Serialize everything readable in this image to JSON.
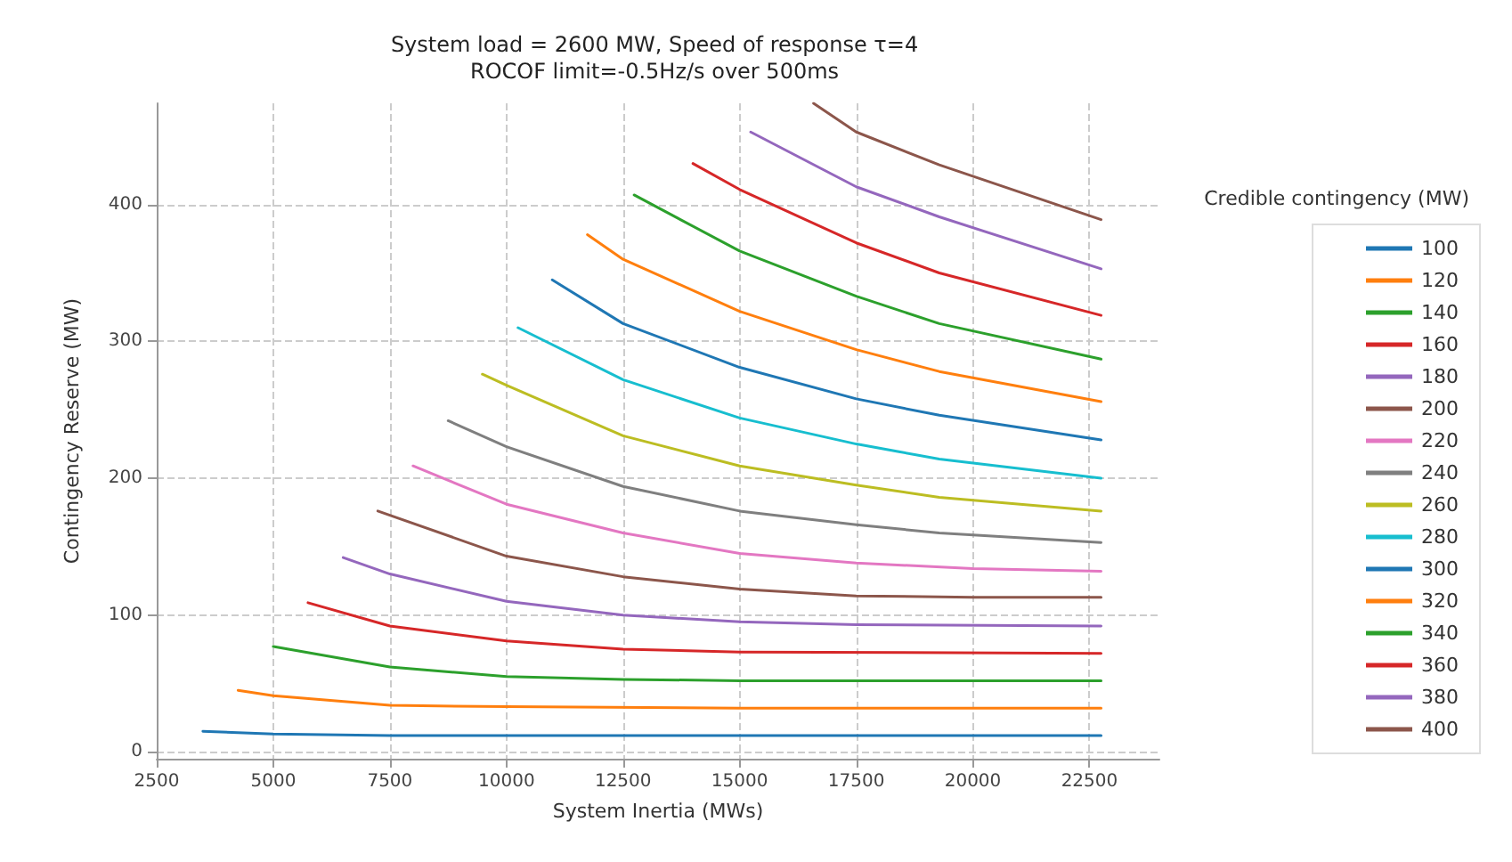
{
  "chart_data": {
    "type": "line",
    "title": "System load = 2600 MW, Speed of response τ=4",
    "subtitle": "ROCOF limit=-0.5Hz/s over 500ms",
    "xlabel": "System Inertia (MWs)",
    "ylabel": "Contingency Reserve (MW)",
    "legend_title": "Credible contingency (MW)",
    "legend": "right",
    "grid": true,
    "marker": "none",
    "line_style": "solid",
    "xlim": [
      2500,
      24000
    ],
    "xticks": [
      2500,
      5000,
      7500,
      10000,
      12500,
      15000,
      17500,
      20000,
      22500
    ],
    "ylim": [
      -5,
      474
    ],
    "yticks": [
      0,
      100,
      200,
      300,
      400
    ],
    "series": [
      {
        "name": "100",
        "color": "#1f77b4",
        "x": [
          3490,
          5000,
          7500,
          10000,
          15000,
          22750
        ],
        "values": [
          15,
          13,
          12,
          12,
          12,
          12
        ]
      },
      {
        "name": "120",
        "color": "#ff7f0e",
        "x": [
          4245,
          5000,
          7500,
          10000,
          15000,
          22750
        ],
        "values": [
          45,
          41,
          34,
          33,
          32,
          32
        ]
      },
      {
        "name": "140",
        "color": "#2ca02c",
        "x": [
          5000,
          7500,
          10000,
          12500,
          15000,
          22750
        ],
        "values": [
          77,
          62,
          55,
          53,
          52,
          52
        ]
      },
      {
        "name": "160",
        "color": "#d62728",
        "x": [
          5744,
          7500,
          10000,
          12500,
          15000,
          22750
        ],
        "values": [
          109,
          92,
          81,
          75,
          73,
          72
        ]
      },
      {
        "name": "180",
        "color": "#9467bd",
        "x": [
          6498,
          7500,
          10000,
          12500,
          15000,
          17500,
          22750
        ],
        "values": [
          142,
          130,
          110,
          100,
          95,
          93,
          92
        ]
      },
      {
        "name": "200",
        "color": "#8c564b",
        "x": [
          7241,
          10000,
          12500,
          15000,
          17500,
          20000,
          22750
        ],
        "values": [
          176,
          143,
          128,
          119,
          114,
          113,
          113
        ]
      },
      {
        "name": "220",
        "color": "#e377c2",
        "x": [
          7996,
          10000,
          12500,
          15000,
          17500,
          20000,
          22750
        ],
        "values": [
          209,
          181,
          160,
          145,
          138,
          134,
          132
        ]
      },
      {
        "name": "240",
        "color": "#7f7f7f",
        "x": [
          8750,
          10000,
          12500,
          15000,
          17500,
          19280,
          22750
        ],
        "values": [
          242,
          223,
          194,
          176,
          166,
          160,
          153
        ]
      },
      {
        "name": "260",
        "color": "#bcbd22",
        "x": [
          9483,
          10000,
          12500,
          15000,
          17500,
          19280,
          22750
        ],
        "values": [
          276,
          268,
          231,
          209,
          195,
          186,
          176
        ]
      },
      {
        "name": "280",
        "color": "#17becf",
        "x": [
          10248,
          12500,
          15000,
          17500,
          19280,
          22750
        ],
        "values": [
          310,
          272,
          244,
          225,
          214,
          200
        ]
      },
      {
        "name": "300",
        "color": "#1f77b4",
        "x": [
          10981,
          12500,
          15000,
          17500,
          19280,
          22750
        ],
        "values": [
          345,
          313,
          281,
          258,
          246,
          228
        ]
      },
      {
        "name": "320",
        "color": "#ff7f0e",
        "x": [
          11735,
          12500,
          15000,
          17500,
          19280,
          22750
        ],
        "values": [
          378,
          360,
          322,
          294,
          278,
          256
        ]
      },
      {
        "name": "340",
        "color": "#2ca02c",
        "x": [
          12737,
          15000,
          17500,
          19280,
          22750
        ],
        "values": [
          407,
          366,
          333,
          313,
          287
        ]
      },
      {
        "name": "360",
        "color": "#d62728",
        "x": [
          13998,
          15000,
          17500,
          19280,
          22750
        ],
        "values": [
          430,
          411,
          372,
          350,
          319
        ]
      },
      {
        "name": "380",
        "color": "#9467bd",
        "x": [
          15237,
          17500,
          19280,
          22750
        ],
        "values": [
          453,
          413,
          391,
          353
        ]
      },
      {
        "name": "400",
        "color": "#8c564b",
        "x": [
          16584,
          17500,
          19280,
          22750
        ],
        "values": [
          474,
          453,
          429,
          389
        ]
      }
    ]
  }
}
